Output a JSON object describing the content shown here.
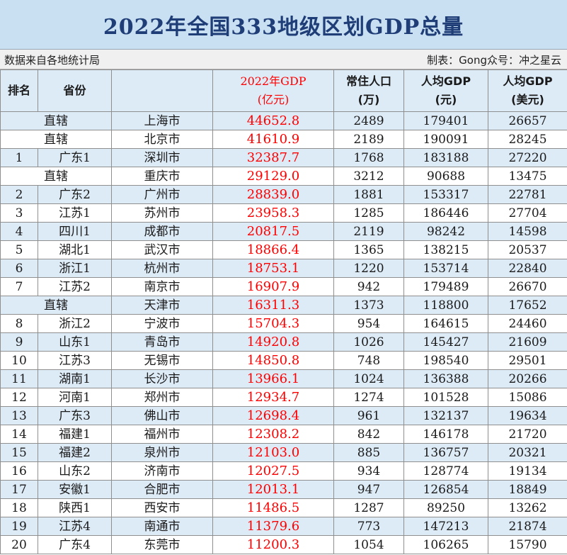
{
  "title": "2022年全国333地级区划GDP总量",
  "info": {
    "source": "数据来自各地统计局",
    "credit": "制表：Gong众号：冲之星云"
  },
  "headers": {
    "rank": "排名",
    "province": "省份",
    "city": "",
    "gdp_line1": "2022年GDP",
    "gdp_line2": "(亿元)",
    "pop_line1": "常住人口",
    "pop_line2": "(万)",
    "pc_cny_line1": "人均GDP",
    "pc_cny_line2": "(元)",
    "pc_usd_line1": "人均GDP",
    "pc_usd_line2": "(美元)"
  },
  "rows": [
    {
      "rank": "",
      "province": "直辖",
      "city": "上海市",
      "gdp": "44652.8",
      "pop": "2489",
      "pc_cny": "179401",
      "pc_usd": "26657"
    },
    {
      "rank": "",
      "province": "直辖",
      "city": "北京市",
      "gdp": "41610.9",
      "pop": "2189",
      "pc_cny": "190091",
      "pc_usd": "28245"
    },
    {
      "rank": "1",
      "province": "广东1",
      "city": "深圳市",
      "gdp": "32387.7",
      "pop": "1768",
      "pc_cny": "183188",
      "pc_usd": "27220"
    },
    {
      "rank": "",
      "province": "直辖",
      "city": "重庆市",
      "gdp": "29129.0",
      "pop": "3212",
      "pc_cny": "90688",
      "pc_usd": "13475"
    },
    {
      "rank": "2",
      "province": "广东2",
      "city": "广州市",
      "gdp": "28839.0",
      "pop": "1881",
      "pc_cny": "153317",
      "pc_usd": "22781"
    },
    {
      "rank": "3",
      "province": "江苏1",
      "city": "苏州市",
      "gdp": "23958.3",
      "pop": "1285",
      "pc_cny": "186446",
      "pc_usd": "27704"
    },
    {
      "rank": "4",
      "province": "四川1",
      "city": "成都市",
      "gdp": "20817.5",
      "pop": "2119",
      "pc_cny": "98242",
      "pc_usd": "14598"
    },
    {
      "rank": "5",
      "province": "湖北1",
      "city": "武汉市",
      "gdp": "18866.4",
      "pop": "1365",
      "pc_cny": "138215",
      "pc_usd": "20537"
    },
    {
      "rank": "6",
      "province": "浙江1",
      "city": "杭州市",
      "gdp": "18753.1",
      "pop": "1220",
      "pc_cny": "153714",
      "pc_usd": "22840"
    },
    {
      "rank": "7",
      "province": "江苏2",
      "city": "南京市",
      "gdp": "16907.9",
      "pop": "942",
      "pc_cny": "179489",
      "pc_usd": "26670"
    },
    {
      "rank": "",
      "province": "直辖",
      "city": "天津市",
      "gdp": "16311.3",
      "pop": "1373",
      "pc_cny": "118800",
      "pc_usd": "17652"
    },
    {
      "rank": "8",
      "province": "浙江2",
      "city": "宁波市",
      "gdp": "15704.3",
      "pop": "954",
      "pc_cny": "164615",
      "pc_usd": "24460"
    },
    {
      "rank": "9",
      "province": "山东1",
      "city": "青岛市",
      "gdp": "14920.8",
      "pop": "1026",
      "pc_cny": "145427",
      "pc_usd": "21609"
    },
    {
      "rank": "10",
      "province": "江苏3",
      "city": "无锡市",
      "gdp": "14850.8",
      "pop": "748",
      "pc_cny": "198540",
      "pc_usd": "29501"
    },
    {
      "rank": "11",
      "province": "湖南1",
      "city": "长沙市",
      "gdp": "13966.1",
      "pop": "1024",
      "pc_cny": "136388",
      "pc_usd": "20266"
    },
    {
      "rank": "12",
      "province": "河南1",
      "city": "郑州市",
      "gdp": "12934.7",
      "pop": "1274",
      "pc_cny": "101528",
      "pc_usd": "15086"
    },
    {
      "rank": "13",
      "province": "广东3",
      "city": "佛山市",
      "gdp": "12698.4",
      "pop": "961",
      "pc_cny": "132137",
      "pc_usd": "19634"
    },
    {
      "rank": "14",
      "province": "福建1",
      "city": "福州市",
      "gdp": "12308.2",
      "pop": "842",
      "pc_cny": "146178",
      "pc_usd": "21720"
    },
    {
      "rank": "15",
      "province": "福建2",
      "city": "泉州市",
      "gdp": "12103.0",
      "pop": "885",
      "pc_cny": "136757",
      "pc_usd": "20321"
    },
    {
      "rank": "16",
      "province": "山东2",
      "city": "济南市",
      "gdp": "12027.5",
      "pop": "934",
      "pc_cny": "128774",
      "pc_usd": "19134"
    },
    {
      "rank": "17",
      "province": "安徽1",
      "city": "合肥市",
      "gdp": "12013.1",
      "pop": "947",
      "pc_cny": "126854",
      "pc_usd": "18849"
    },
    {
      "rank": "18",
      "province": "陕西1",
      "city": "西安市",
      "gdp": "11486.5",
      "pop": "1287",
      "pc_cny": "89250",
      "pc_usd": "13262"
    },
    {
      "rank": "19",
      "province": "江苏4",
      "city": "南通市",
      "gdp": "11379.6",
      "pop": "773",
      "pc_cny": "147213",
      "pc_usd": "21874"
    },
    {
      "rank": "20",
      "province": "广东4",
      "city": "东莞市",
      "gdp": "11200.3",
      "pop": "1054",
      "pc_cny": "106265",
      "pc_usd": "15790"
    }
  ]
}
